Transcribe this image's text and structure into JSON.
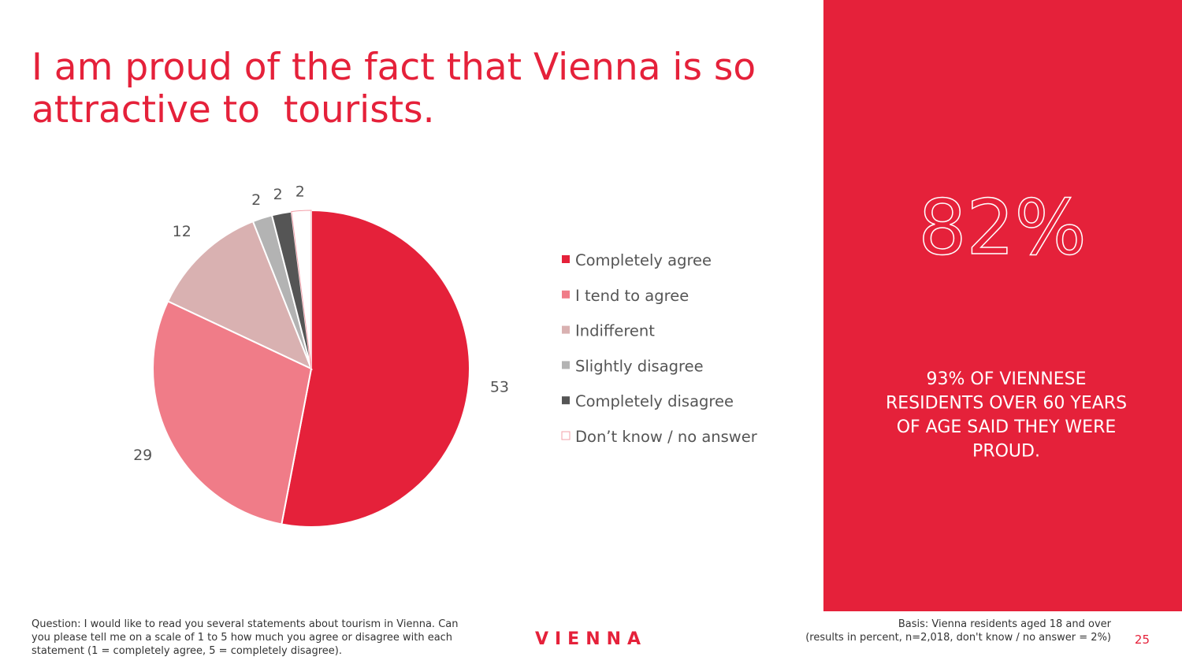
{
  "chart_data": {
    "type": "pie",
    "title": [
      "I am proud of the fact that Vienna is so",
      "attractive to  tourists."
    ],
    "categories": [
      "Completely agree",
      "I tend to agree",
      "Indifferent",
      "Slightly disagree",
      "Completely disagree",
      "Don’t know / no answer"
    ],
    "values": [
      53,
      29,
      12,
      2,
      2,
      2
    ],
    "colors": [
      "#e5213a",
      "#f07c88",
      "#d9b1b1",
      "#b3b3b3",
      "#555555",
      "#ffffff"
    ]
  },
  "callout": {
    "big_number": "82%",
    "lines": [
      "93% OF VIENNESE",
      "RESIDENTS OVER 60 YEARS",
      "OF AGE SAID THEY WERE",
      "PROUD."
    ]
  },
  "footer": {
    "question": [
      "Question: I would like to read you several statements about tourism in Vienna. Can",
      "you please tell me on a scale of 1 to 5 how much you agree or disagree with each",
      "statement (1 = completely agree, 5 = completely disagree)."
    ],
    "logo": "VIENNA",
    "basis": [
      "Basis: Vienna residents aged 18 and over",
      "(results in percent, n=2,018, don't know / no answer = 2%)"
    ],
    "page": "25"
  }
}
